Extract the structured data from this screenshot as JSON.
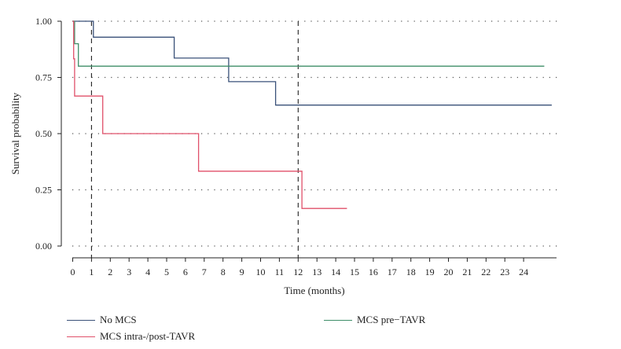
{
  "chart_data": {
    "type": "line",
    "xlabel": "Time (months)",
    "ylabel": "Survival probability",
    "xlim": [
      0,
      25
    ],
    "ylim": [
      0,
      1
    ],
    "x_ticks": [
      "0",
      "1",
      "2",
      "3",
      "4",
      "5",
      "6",
      "7",
      "8",
      "9",
      "10",
      "11",
      "12",
      "13",
      "14",
      "15",
      "16",
      "17",
      "18",
      "19",
      "20",
      "21",
      "22",
      "23",
      "24"
    ],
    "y_ticks": [
      "0.00",
      "0.25",
      "0.50",
      "0.75",
      "1.00"
    ],
    "y_tick_values": [
      0,
      0.25,
      0.5,
      0.75,
      1.0
    ],
    "vertical_reference_lines": [
      1,
      12
    ],
    "grid": "dotted horizontal",
    "series": [
      {
        "name": "No MCS",
        "color": "#3a5179",
        "step_points": [
          [
            0,
            1.0
          ],
          [
            1.1,
            1.0
          ],
          [
            1.1,
            0.929
          ],
          [
            5.4,
            0.929
          ],
          [
            5.4,
            0.836
          ],
          [
            8.3,
            0.836
          ],
          [
            8.3,
            0.731
          ],
          [
            10.8,
            0.731
          ],
          [
            10.8,
            0.627
          ],
          [
            25.5,
            0.627
          ]
        ]
      },
      {
        "name": "MCS pre−TAVR",
        "color": "#3f8f68",
        "step_points": [
          [
            0,
            1.0
          ],
          [
            0.1,
            1.0
          ],
          [
            0.1,
            0.9
          ],
          [
            0.3,
            0.9
          ],
          [
            0.3,
            0.8
          ],
          [
            25.1,
            0.8
          ]
        ]
      },
      {
        "name": "MCS intra-/post-TAVR",
        "color": "#e0506a",
        "step_points": [
          [
            0,
            1.0
          ],
          [
            0.05,
            1.0
          ],
          [
            0.05,
            0.833
          ],
          [
            0.1,
            0.833
          ],
          [
            0.1,
            0.667
          ],
          [
            1.6,
            0.667
          ],
          [
            1.6,
            0.5
          ],
          [
            6.7,
            0.5
          ],
          [
            6.7,
            0.333
          ],
          [
            12.2,
            0.333
          ],
          [
            12.2,
            0.167
          ],
          [
            14.6,
            0.167
          ]
        ]
      }
    ],
    "legend": [
      {
        "label": "No MCS",
        "color": "#3a5179"
      },
      {
        "label": "MCS pre−TAVR",
        "color": "#3f8f68"
      },
      {
        "label": "MCS intra-/post-TAVR",
        "color": "#e0506a"
      }
    ],
    "legend_position": "bottom"
  }
}
